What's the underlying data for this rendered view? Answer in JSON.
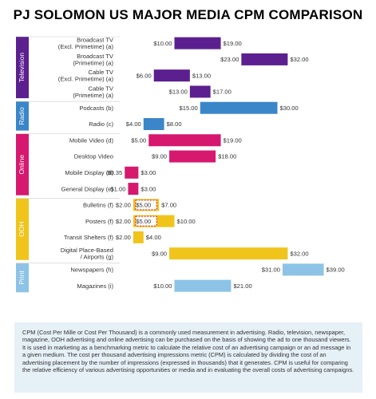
{
  "chart_data": {
    "type": "bar",
    "subtype": "floating-range",
    "title": "PJ SOLOMON US MAJOR MEDIA CPM COMPARISON",
    "x_range": [
      0,
      40
    ],
    "grid": false,
    "groups": [
      {
        "name": "Television",
        "color": "#5b1f8f",
        "rows": [
          {
            "label": [
              "Broadcast TV",
              "(Excl. Primetime) (a)"
            ],
            "min": 10,
            "max": 19,
            "min_label": "$10.00",
            "max_label": "$19.00"
          },
          {
            "label": [
              "Broadcast TV",
              "(Primetime) (a)"
            ],
            "min": 23,
            "max": 32,
            "min_label": "$23.00",
            "max_label": "$32.00"
          },
          {
            "label": [
              "Cable TV",
              "(Excl. Primetime) (a)"
            ],
            "min": 6,
            "max": 13,
            "min_label": "$6.00",
            "max_label": "$13.00"
          },
          {
            "label": [
              "Cable TV",
              "(Primetime) (a)"
            ],
            "min": 13,
            "max": 17,
            "min_label": "$13.00",
            "max_label": "$17.00"
          }
        ]
      },
      {
        "name": "Radio",
        "color": "#3a86c8",
        "rows": [
          {
            "label": [
              "Podcasts (b)"
            ],
            "min": 15,
            "max": 30,
            "min_label": "$15.00",
            "max_label": "$30.00"
          },
          {
            "label": [
              "Radio (c)"
            ],
            "min": 4,
            "max": 8,
            "min_label": "$4.00",
            "max_label": "$8.00"
          }
        ]
      },
      {
        "name": "Online",
        "color": "#d6186f",
        "rows": [
          {
            "label": [
              "Mobile Video (d)"
            ],
            "min": 5,
            "max": 19,
            "min_label": "$5.00",
            "max_label": "$19.00"
          },
          {
            "label": [
              "Desktop Video"
            ],
            "min": 9,
            "max": 18,
            "min_label": "$9.00",
            "max_label": "$18.00"
          },
          {
            "label": [
              "Mobile Display (d)"
            ],
            "min": 0.35,
            "max": 3,
            "min_label": "$0.35",
            "max_label": "$3.00"
          },
          {
            "label": [
              "General Display (e)"
            ],
            "min": 1,
            "max": 3,
            "min_label": "$1.00",
            "max_label": "$3.00"
          }
        ]
      },
      {
        "name": "OOH",
        "color": "#f0c41b",
        "rows": [
          {
            "label": [
              "Bulletins (f)"
            ],
            "min": 2,
            "max": 7,
            "min_label": "$2.00",
            "max_label": "$7.00",
            "mid": 5,
            "mid_label": "$5.00"
          },
          {
            "label": [
              "Posters (f)"
            ],
            "min": 2,
            "max": 10,
            "min_label": "$2.00",
            "max_label": "$10.00",
            "mid": 5,
            "mid_label": "$5.00"
          },
          {
            "label": [
              "Transit Shelters (f)"
            ],
            "min": 2,
            "max": 4,
            "min_label": "$2.00",
            "max_label": "$4.00"
          },
          {
            "label": [
              "Digital Place-Based",
              "/ Airports (g)"
            ],
            "min": 9,
            "max": 32,
            "min_label": "$9.00",
            "max_label": "$32.00"
          }
        ]
      },
      {
        "name": "Print",
        "color": "#8cc3e6",
        "rows": [
          {
            "label": [
              "Newspapers (h)"
            ],
            "min": 31,
            "max": 39,
            "min_label": "$31.00",
            "max_label": "$39.00"
          },
          {
            "label": [
              "Magazines (i)"
            ],
            "min": 10,
            "max": 21,
            "min_label": "$10.00",
            "max_label": "$21.00"
          }
        ]
      }
    ]
  },
  "footnote": "CPM (Cost Per Mille or Cost Per Thousand) is a commonly used measurement in advertising. Radio, television, newspaper, magazine, OOH advertising and online advertising can be purchased on the basis of showing the ad to one thousand viewers. It is used in marketing as a benchmarking metric to calculate the relative cost of an advertising campaign or an ad message in a given medium. The cost per thousand advertising impressions metric (CPM) is calculated by dividing the cost of an advertising placement by the number of impressions (expressed in thousands) that it generates. CPM is useful for comparing the relative efficiency of various advertising opportunities or media and in evaluating the overall costs of advertising campaigns."
}
